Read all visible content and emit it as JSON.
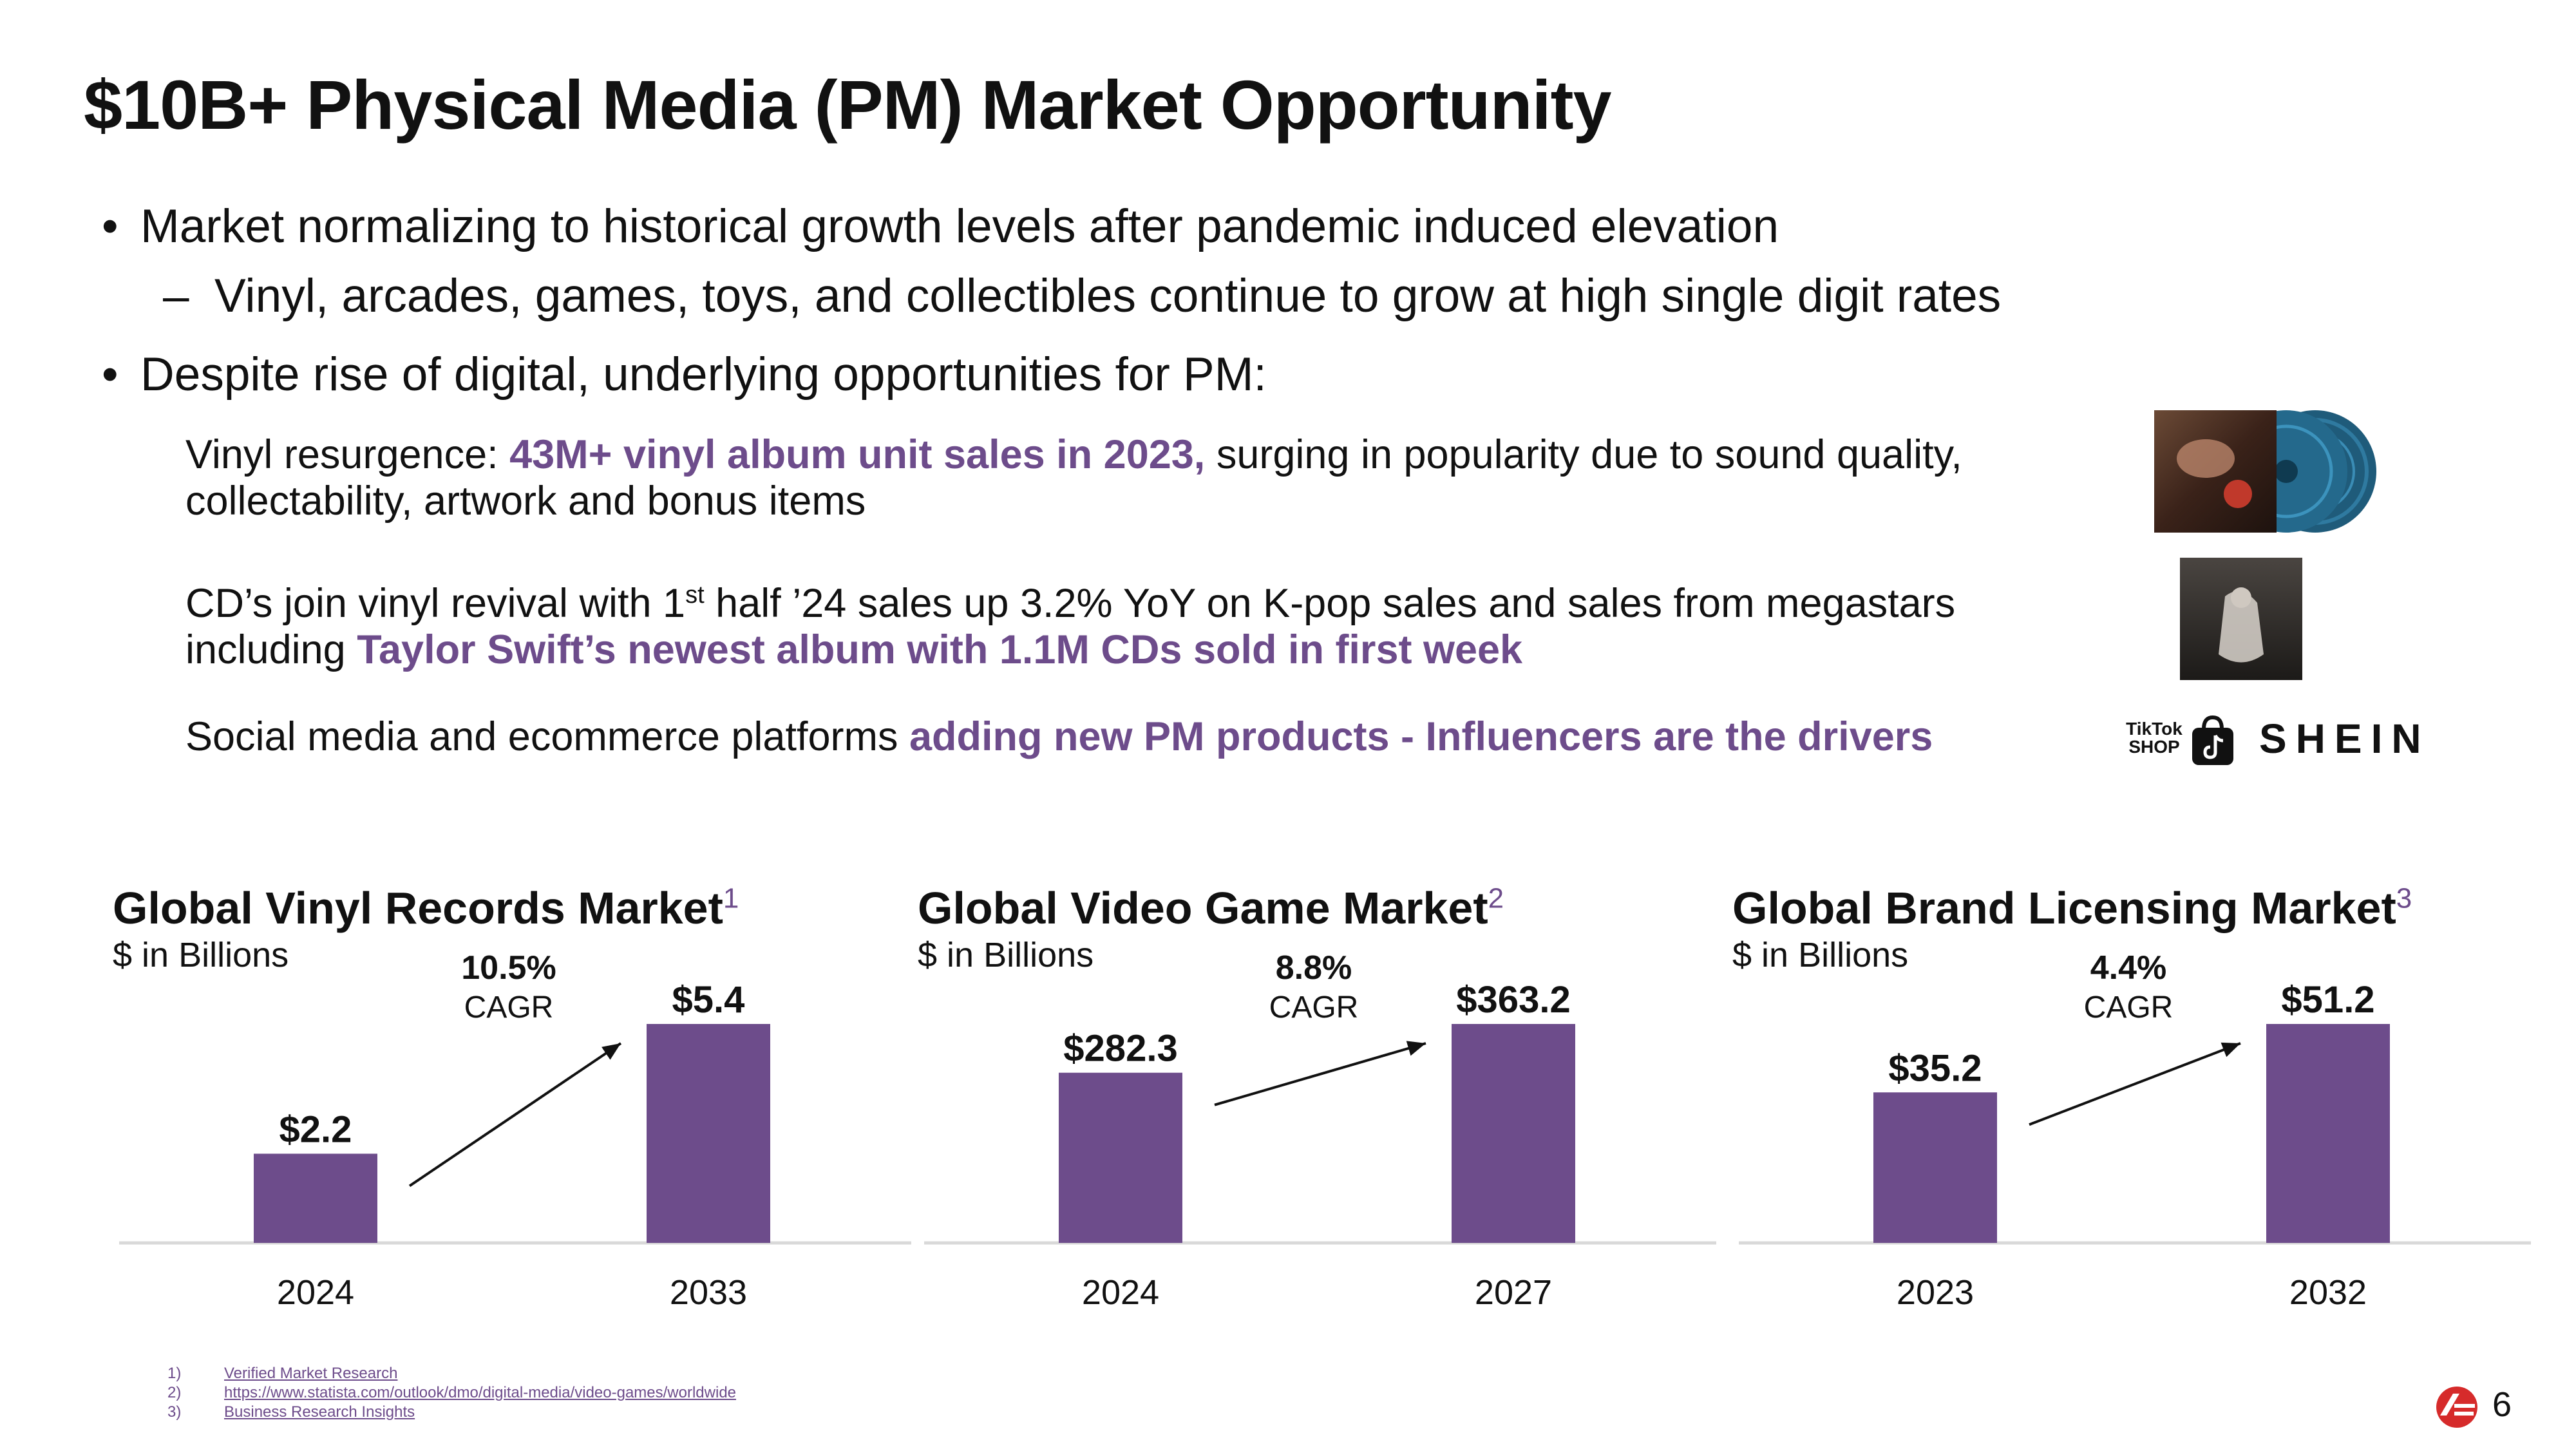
{
  "title": "$10B+ Physical Media (PM) Market Opportunity",
  "bullets": {
    "b1": "Market normalizing to historical growth levels after pandemic induced elevation",
    "b1_sub": "Vinyl, arcades, games, toys, and collectibles continue to grow at high single digit rates",
    "b2": "Despite rise of digital, underlying opportunities for PM:",
    "bullet_marker": "•",
    "sub_marker": "–"
  },
  "paragraphs": {
    "p1_pre": "Vinyl resurgence: ",
    "p1_hl": "43M+ vinyl album unit sales in 2023,",
    "p1_post": " surging in popularity due to sound quality, collectability, artwork and bonus items",
    "p2_pre": "CD’s join vinyl revival with 1",
    "p2_sup": "st",
    "p2_mid": " half ’24 sales up 3.2% YoY on K-pop sales and sales from megastars including ",
    "p2_hl": "Taylor Swift’s newest album with 1.1M CDs sold in first week",
    "p3_pre": "Social media and ecommerce platforms ",
    "p3_hl": "adding new PM products - Influencers are the drivers"
  },
  "logos": {
    "tiktok_line1": "TikTok",
    "tiktok_line2": "SHOP",
    "shein": "SHEIN"
  },
  "colors": {
    "bar": "#6d4c8b",
    "highlight": "#6d4c8b",
    "axis": "#d9d9d9",
    "text": "#111111"
  },
  "chart_data": [
    {
      "type": "bar",
      "title": "Global Vinyl Records Market",
      "footnote_ref": "1",
      "subtitle": "$ in Billions",
      "categories": [
        "2024",
        "2033"
      ],
      "values": [
        2.2,
        5.4
      ],
      "value_labels": [
        "$2.2",
        "$5.4"
      ],
      "cagr": "10.5%",
      "cagr_label": "CAGR",
      "ylim": [
        0,
        5.4
      ]
    },
    {
      "type": "bar",
      "title": "Global Video Game Market",
      "footnote_ref": "2",
      "subtitle": "$ in Billions",
      "categories": [
        "2024",
        "2027"
      ],
      "values": [
        282.3,
        363.2
      ],
      "value_labels": [
        "$282.3",
        "$363.2"
      ],
      "cagr": "8.8%",
      "cagr_label": "CAGR",
      "ylim": [
        0,
        363.2
      ]
    },
    {
      "type": "bar",
      "title": "Global Brand Licensing Market",
      "footnote_ref": "3",
      "subtitle": "$ in Billions",
      "categories": [
        "2023",
        "2032"
      ],
      "values": [
        35.2,
        51.2
      ],
      "value_labels": [
        "$35.2",
        "$51.2"
      ],
      "cagr": "4.4%",
      "cagr_label": "CAGR",
      "ylim": [
        0,
        51.2
      ]
    }
  ],
  "footnotes": [
    {
      "num": "1)",
      "text": "Verified Market Research"
    },
    {
      "num": "2)",
      "text": "https://www.statista.com/outlook/dmo/digital-media/video-games/worldwide"
    },
    {
      "num": "3)",
      "text": "Business Research Insights"
    }
  ],
  "page_number": "6"
}
